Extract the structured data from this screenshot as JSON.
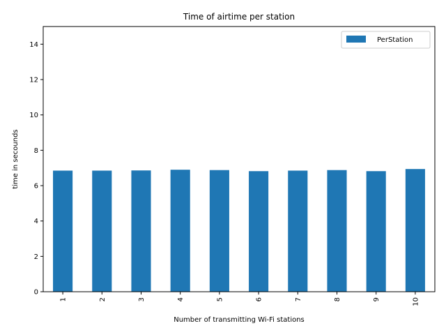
{
  "chart_data": {
    "type": "bar",
    "title": "Time of airtime per station",
    "xlabel": "Number of transmitting Wi-Fi stations",
    "ylabel": "time in secounds",
    "categories": [
      "1",
      "2",
      "3",
      "4",
      "5",
      "6",
      "7",
      "8",
      "9",
      "10"
    ],
    "series": [
      {
        "name": "PerStation",
        "color": "#1f77b4",
        "values": [
          6.85,
          6.85,
          6.86,
          6.9,
          6.88,
          6.82,
          6.85,
          6.88,
          6.82,
          6.94
        ]
      }
    ],
    "ylim": [
      0,
      15
    ],
    "yticks": [
      0,
      2,
      4,
      6,
      8,
      10,
      12,
      14
    ],
    "grid": false,
    "legend_position": "top-right",
    "xtick_rotation": "vertical"
  }
}
